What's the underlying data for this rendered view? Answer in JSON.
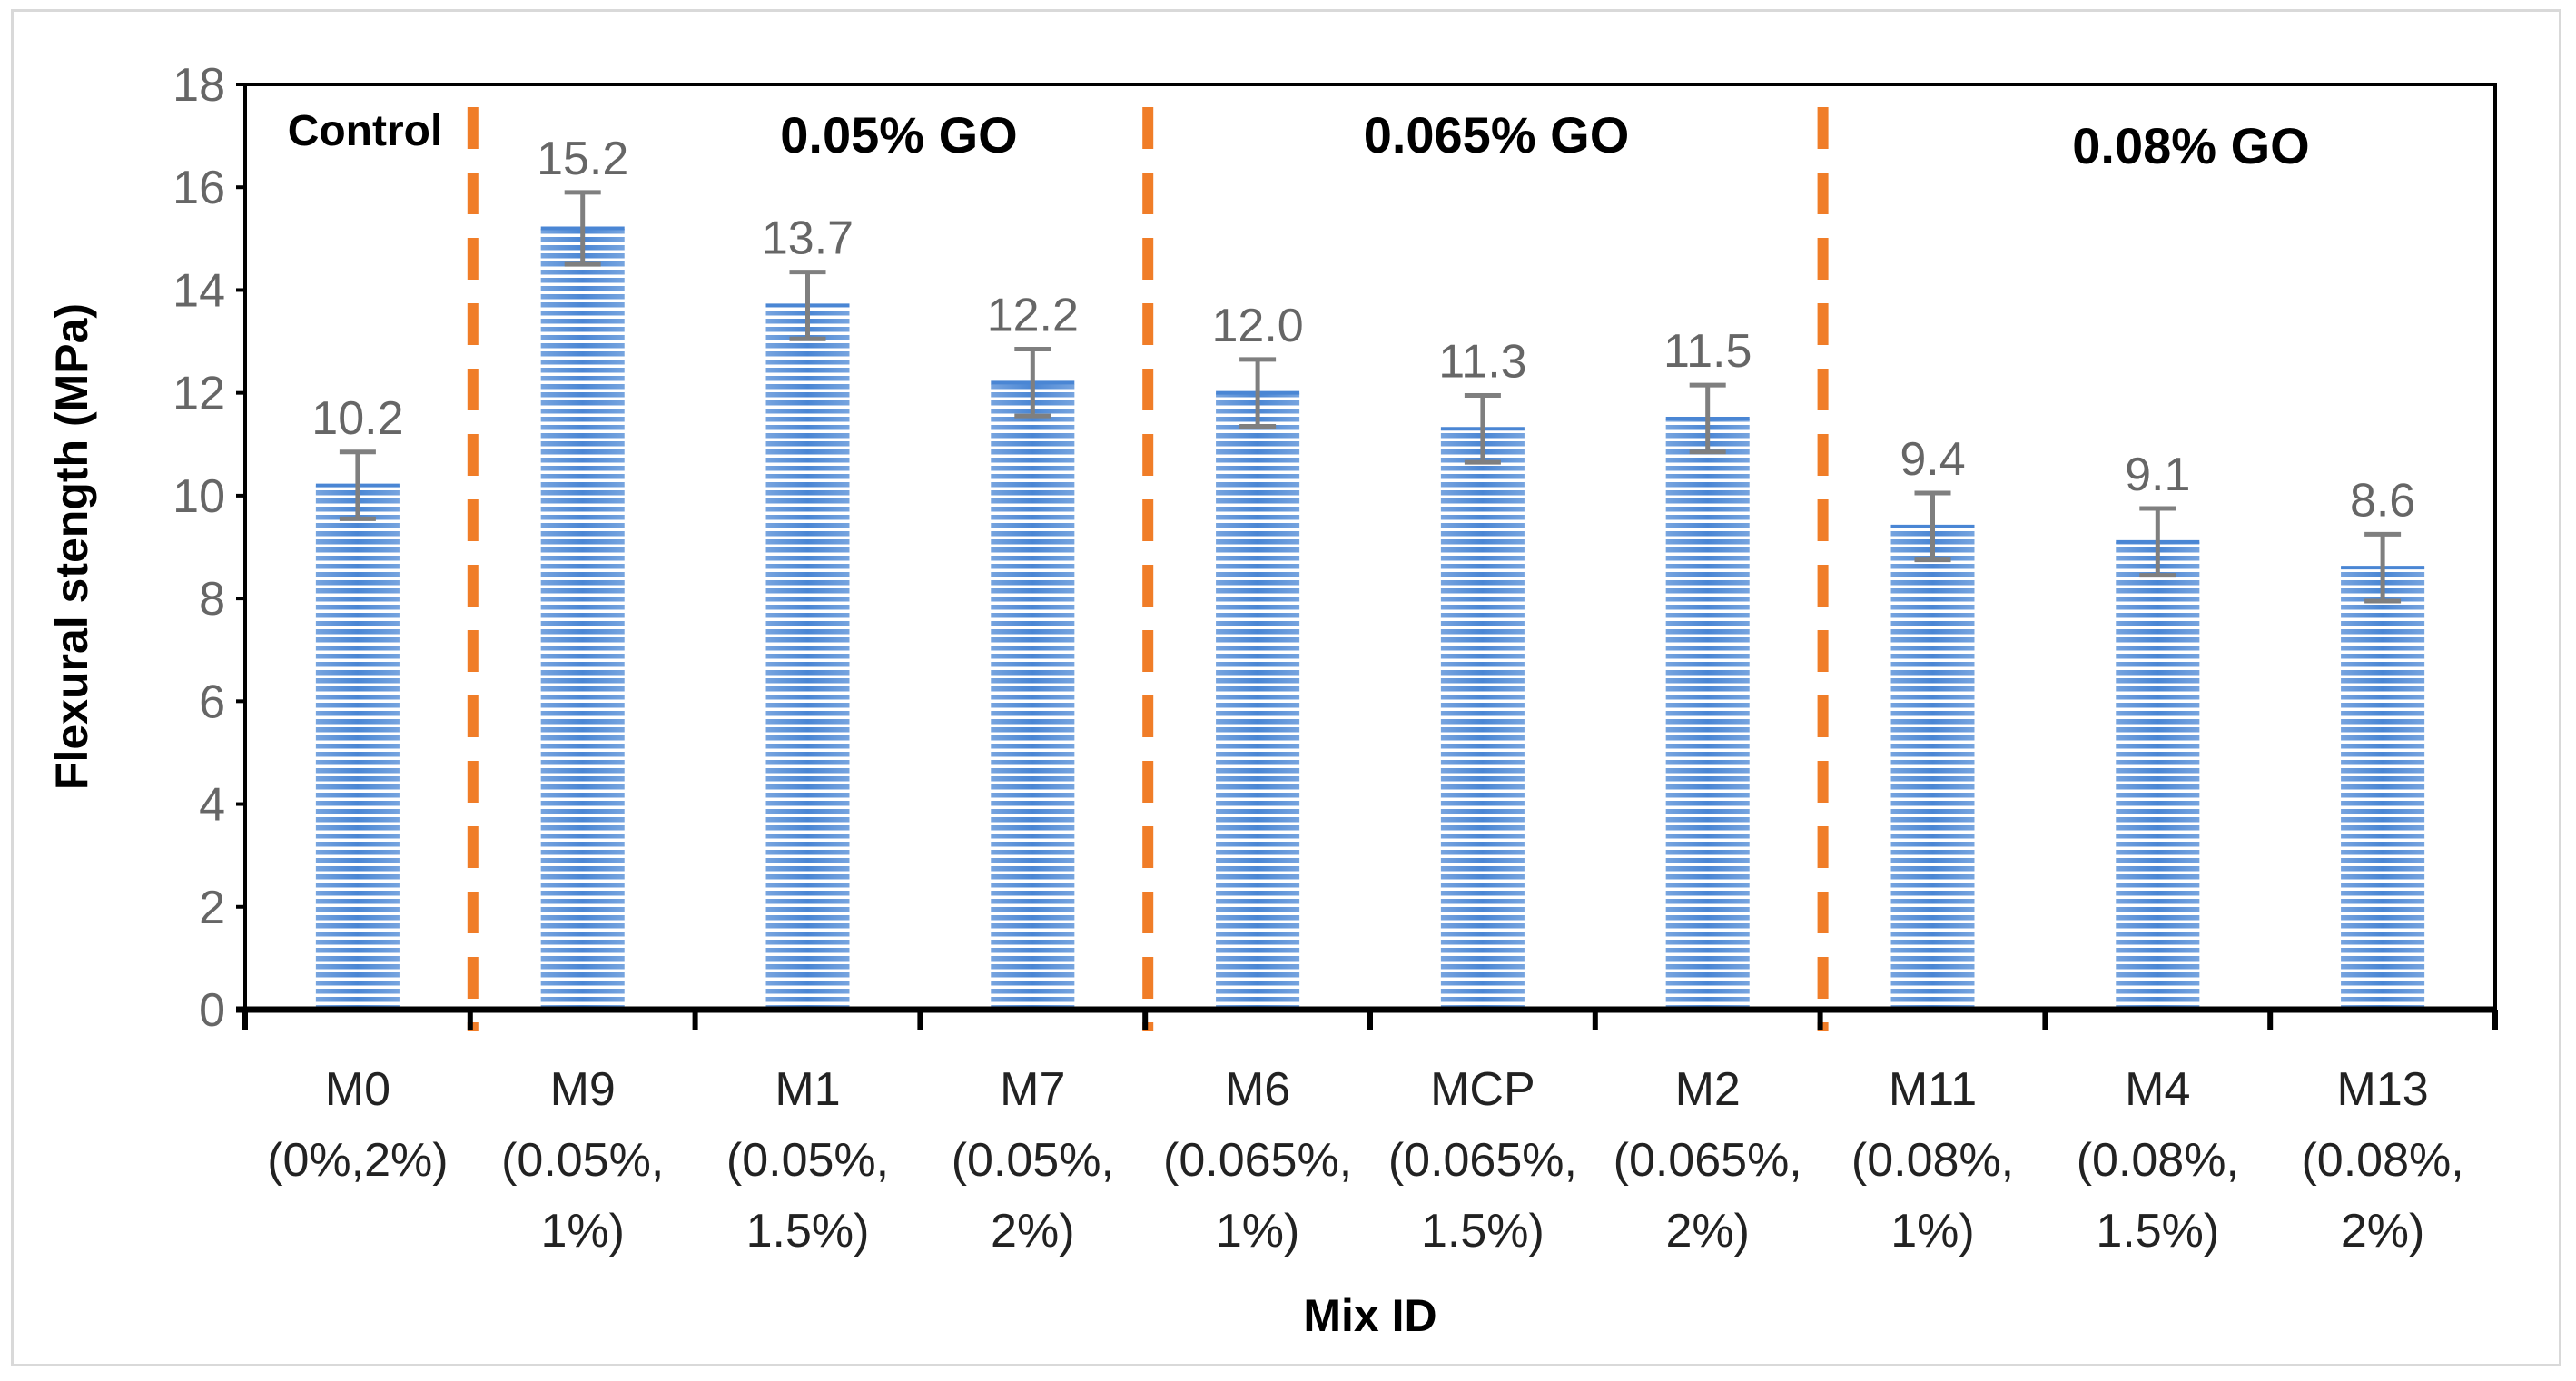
{
  "chart_data": {
    "type": "bar",
    "title": "",
    "xlabel": "Mix ID",
    "ylabel": "Flexural stength (MPa)",
    "ylim": [
      0,
      18
    ],
    "yticks": [
      "0",
      "2",
      "4",
      "6",
      "8",
      "10",
      "12",
      "14",
      "16",
      "18"
    ],
    "grid": false,
    "categories": [
      {
        "id": "M0",
        "line2": "(0%,2%)",
        "line3": ""
      },
      {
        "id": "M9",
        "line2": "(0.05%,",
        "line3": "1%)"
      },
      {
        "id": "M1",
        "line2": "(0.05%,",
        "line3": "1.5%)"
      },
      {
        "id": "M7",
        "line2": "(0.05%,",
        "line3": "2%)"
      },
      {
        "id": "M6",
        "line2": "(0.065%,",
        "line3": "1%)"
      },
      {
        "id": "MCP",
        "line2": "(0.065%,",
        "line3": "1.5%)"
      },
      {
        "id": "M2",
        "line2": "(0.065%,",
        "line3": "2%)"
      },
      {
        "id": "M11",
        "line2": "(0.08%,",
        "line3": "1%)"
      },
      {
        "id": "M4",
        "line2": "(0.08%,",
        "line3": "1.5%)"
      },
      {
        "id": "M13",
        "line2": "(0.08%,",
        "line3": "2%)"
      }
    ],
    "values": [
      10.2,
      15.2,
      13.7,
      12.2,
      12.0,
      11.3,
      11.5,
      9.4,
      9.1,
      8.6
    ],
    "value_labels": [
      "10.2",
      "15.2",
      "13.7",
      "12.2",
      "12.0",
      "11.3",
      "11.5",
      "9.4",
      "9.1",
      "8.6"
    ],
    "error": [
      0.65,
      0.7,
      0.65,
      0.65,
      0.65,
      0.65,
      0.65,
      0.65,
      0.65,
      0.65
    ],
    "group_labels": [
      {
        "text": "Control",
        "after_category": 0
      },
      {
        "text": "0.05% GO",
        "after_category": 3
      },
      {
        "text": "0.065% GO",
        "after_category": 6
      },
      {
        "text": "0.08% GO",
        "after_category": 9
      }
    ],
    "bar_color": "#4a86d4",
    "bar_stripe_color": "#ffffff",
    "error_bar_color": "#7f7f7f",
    "divider_color": "#f07d28"
  }
}
